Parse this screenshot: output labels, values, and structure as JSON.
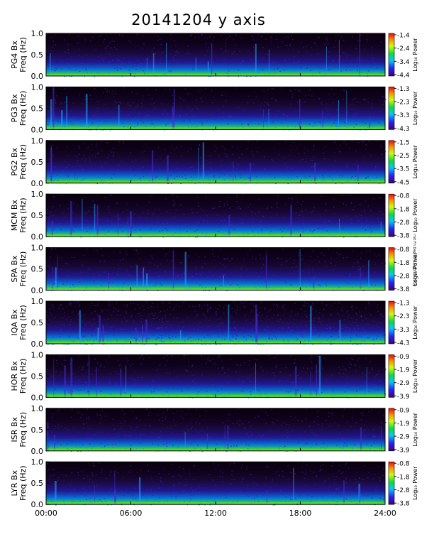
{
  "title": "20141204 y axis",
  "side_note": "mit Fri Dec 05 16:28:02 2014",
  "chart_data": {
    "type": "heatmap",
    "title": "20141204 y axis",
    "x_ticks": [
      "00:00",
      "06:00",
      "12:00",
      "18:00",
      "24:00"
    ],
    "xlim_hours": [
      0,
      24
    ],
    "y_ticks": [
      "0.0",
      "0.5",
      "1.0"
    ],
    "ylim_hz": [
      0,
      1.0
    ],
    "y_axis_label": "Freq (Hz)",
    "colorbar_label": "Log₁₀ Power",
    "colormap": "rainbow (purple → blue → green → yellow → red)",
    "panels": [
      {
        "station_label": "PG4 Bx",
        "colorbar_ticks": [
          "-1.4",
          "-2.4",
          "-3.4",
          "-4.4"
        ]
      },
      {
        "station_label": "PG3 Bx",
        "colorbar_ticks": [
          "-1.3",
          "-2.3",
          "-3.3",
          "-4.3"
        ]
      },
      {
        "station_label": "PG2 Bx",
        "colorbar_ticks": [
          "-1.5",
          "-2.5",
          "-3.5",
          "-4.5"
        ]
      },
      {
        "station_label": "MCM Bx",
        "colorbar_ticks": [
          "-0.8",
          "-1.8",
          "-2.8",
          "-3.8"
        ]
      },
      {
        "station_label": "SPA Bx",
        "colorbar_ticks": [
          "-0.8",
          "-1.8",
          "-2.8",
          "-3.8"
        ]
      },
      {
        "station_label": "IQA Bx",
        "colorbar_ticks": [
          "-1.3",
          "-2.3",
          "-3.3",
          "-4.3"
        ]
      },
      {
        "station_label": "HOR Bx",
        "colorbar_ticks": [
          "-0.9",
          "-1.9",
          "-2.9",
          "-3.9"
        ]
      },
      {
        "station_label": "ISR Bx",
        "colorbar_ticks": [
          "-0.9",
          "-1.9",
          "-2.9",
          "-3.9"
        ]
      },
      {
        "station_label": "LYR Bx",
        "colorbar_ticks": [
          "-0.8",
          "-1.8",
          "-2.8",
          "-3.8"
        ]
      }
    ]
  }
}
